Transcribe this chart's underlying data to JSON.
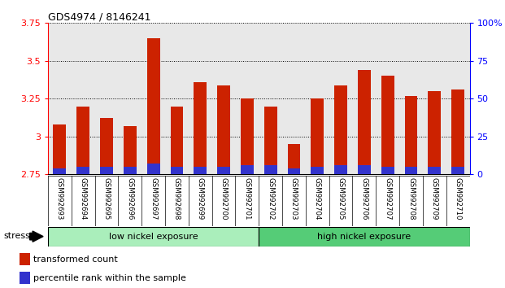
{
  "title": "GDS4974 / 8146241",
  "samples": [
    "GSM992693",
    "GSM992694",
    "GSM992695",
    "GSM992696",
    "GSM992697",
    "GSM992698",
    "GSM992699",
    "GSM992700",
    "GSM992701",
    "GSM992702",
    "GSM992703",
    "GSM992704",
    "GSM992705",
    "GSM992706",
    "GSM992707",
    "GSM992708",
    "GSM992709",
    "GSM992710"
  ],
  "transformed_count": [
    3.08,
    3.2,
    3.12,
    3.07,
    3.65,
    3.2,
    3.36,
    3.34,
    3.25,
    3.2,
    2.95,
    3.25,
    3.34,
    3.44,
    3.4,
    3.27,
    3.3,
    3.31
  ],
  "percentile_rank_pct": [
    4,
    5,
    5,
    5,
    7,
    5,
    5,
    5,
    6,
    6,
    4,
    5,
    6,
    6,
    5,
    5,
    5,
    5
  ],
  "ymin": 2.75,
  "ymax": 3.75,
  "yticks": [
    2.75,
    3.0,
    3.25,
    3.5,
    3.75
  ],
  "ytick_labels": [
    "2.75",
    "3",
    "3.25",
    "3.5",
    "3.75"
  ],
  "right_yticks": [
    0,
    25,
    50,
    75,
    100
  ],
  "right_ytick_labels": [
    "0",
    "25",
    "50",
    "75",
    "100%"
  ],
  "groups": [
    {
      "label": "low nickel exposure",
      "start": 0,
      "end": 9,
      "color": "#aaeebb"
    },
    {
      "label": "high nickel exposure",
      "start": 9,
      "end": 18,
      "color": "#55cc77"
    }
  ],
  "stress_label": "stress",
  "bar_color_red": "#cc2200",
  "bar_color_blue": "#3333cc",
  "baseline": 2.75,
  "percentile_scale_max": 100,
  "bg_color": "#e8e8e8",
  "legend_red": "transformed count",
  "legend_blue": "percentile rank within the sample"
}
